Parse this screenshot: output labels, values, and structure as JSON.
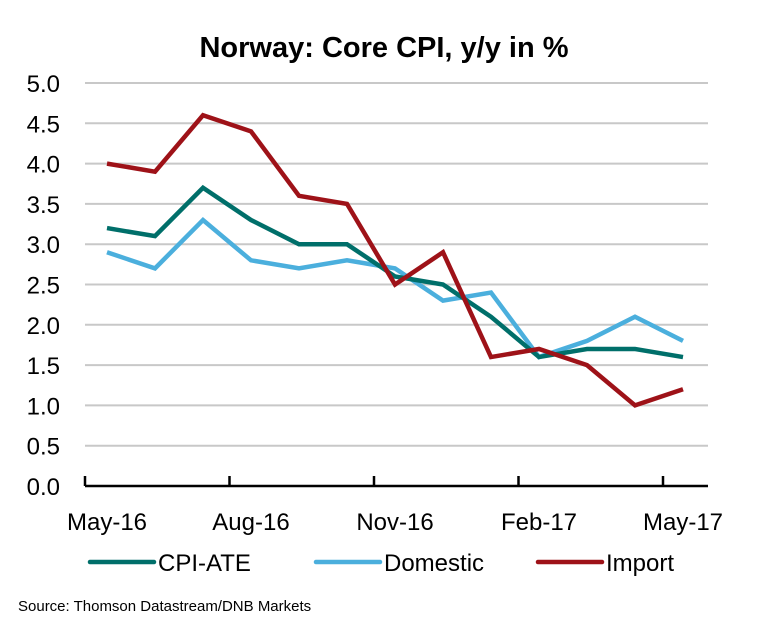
{
  "chart_data": {
    "type": "line",
    "title": "Norway: Core CPI, y/y in %",
    "xlabel": "",
    "ylabel": "",
    "x": [
      "May-16",
      "Jun-16",
      "Jul-16",
      "Aug-16",
      "Sep-16",
      "Oct-16",
      "Nov-16",
      "Dec-16",
      "Jan-17",
      "Feb-17",
      "Mar-17",
      "Apr-17",
      "May-17"
    ],
    "x_tick_labels": [
      "May-16",
      "Aug-16",
      "Nov-16",
      "Feb-17",
      "May-17"
    ],
    "y_tick_labels": [
      "0.0",
      "0.5",
      "1.0",
      "1.5",
      "2.0",
      "2.5",
      "3.0",
      "3.5",
      "4.0",
      "4.5",
      "5.0"
    ],
    "ylim": [
      0,
      5
    ],
    "grid": true,
    "legend_position": "bottom",
    "series": [
      {
        "name": "CPI-ATE",
        "color": "#006F6A",
        "values": [
          3.2,
          3.1,
          3.7,
          3.3,
          3.0,
          3.0,
          2.6,
          2.5,
          2.1,
          1.6,
          1.7,
          1.7,
          1.6
        ]
      },
      {
        "name": "Domestic",
        "color": "#4BAFDD",
        "values": [
          2.9,
          2.7,
          3.3,
          2.8,
          2.7,
          2.8,
          2.7,
          2.3,
          2.4,
          1.6,
          1.8,
          2.1,
          1.8
        ]
      },
      {
        "name": "Import",
        "color": "#9E1218",
        "values": [
          4.0,
          3.9,
          4.6,
          4.4,
          3.6,
          3.5,
          2.5,
          2.9,
          1.6,
          1.7,
          1.5,
          1.0,
          1.2
        ]
      }
    ]
  },
  "source": "Source:  Thomson  Datastream/DNB  Markets"
}
